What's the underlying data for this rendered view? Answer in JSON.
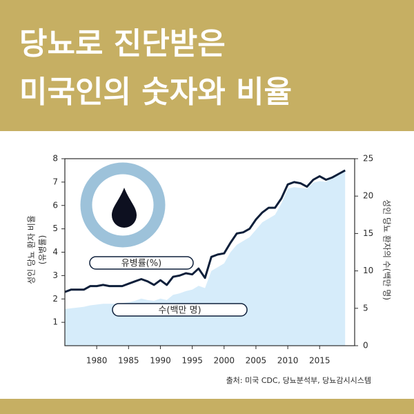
{
  "chart_data": {
    "type": "line",
    "title": [
      "당뇨로 진단받은",
      "미국인의 숫자와 비율"
    ],
    "y_label": [
      "성인 당뇨 환자 비율",
      "(유병률)"
    ],
    "y2_label": "성인 당뇨 환자의 수(백만 명)",
    "source": "출처: 미국 CDC, 당뇨분석부, 당뇨감시시스템",
    "x": [
      1975,
      1976,
      1977,
      1978,
      1979,
      1980,
      1981,
      1982,
      1983,
      1984,
      1985,
      1986,
      1987,
      1988,
      1989,
      1990,
      1991,
      1992,
      1993,
      1994,
      1995,
      1996,
      1997,
      1998,
      1999,
      2000,
      2001,
      2002,
      2003,
      2004,
      2005,
      2006,
      2007,
      2008,
      2009,
      2010,
      2011,
      2012,
      2013,
      2014,
      2015,
      2016,
      2017,
      2018,
      2019
    ],
    "series": [
      {
        "name": "유병률(%)",
        "kind": "line",
        "axis": "y",
        "color": "#0d1f3a",
        "values": [
          2.3,
          2.4,
          2.4,
          2.4,
          2.55,
          2.55,
          2.6,
          2.55,
          2.55,
          2.55,
          2.65,
          2.75,
          2.85,
          2.75,
          2.6,
          2.8,
          2.6,
          2.95,
          3.0,
          3.1,
          3.05,
          3.3,
          2.9,
          3.8,
          3.9,
          3.95,
          4.4,
          4.8,
          4.85,
          5.0,
          5.4,
          5.7,
          5.9,
          5.9,
          6.3,
          6.9,
          7.0,
          6.95,
          6.8,
          7.1,
          7.25,
          7.1,
          7.2,
          7.35,
          7.5
        ]
      },
      {
        "name": "수(백만 명)",
        "kind": "area",
        "axis": "y2",
        "color": "#d6ecfa",
        "values": [
          4.9,
          5.0,
          5.1,
          5.2,
          5.4,
          5.5,
          5.6,
          5.6,
          5.6,
          5.7,
          5.8,
          6.0,
          6.3,
          6.1,
          6.0,
          6.3,
          6.1,
          6.8,
          7.0,
          7.3,
          7.5,
          8.0,
          7.7,
          10.0,
          10.5,
          11.0,
          12.5,
          13.5,
          14.0,
          14.5,
          15.5,
          16.5,
          17.0,
          17.5,
          19.0,
          21.0,
          21.2,
          21.1,
          21.0,
          21.8,
          22.0,
          21.9,
          22.5,
          23.0,
          23.5
        ]
      }
    ],
    "xlim": [
      1975,
      2020.5
    ],
    "xticks": [
      1980,
      1985,
      1990,
      1995,
      2000,
      2005,
      2010,
      2015
    ],
    "ylim": [
      0,
      8
    ],
    "yticks": [
      1,
      2,
      3,
      4,
      5,
      6,
      7,
      8
    ],
    "y2lim": [
      0,
      25
    ],
    "y2ticks": [
      0,
      5,
      10,
      15,
      20,
      25
    ]
  }
}
